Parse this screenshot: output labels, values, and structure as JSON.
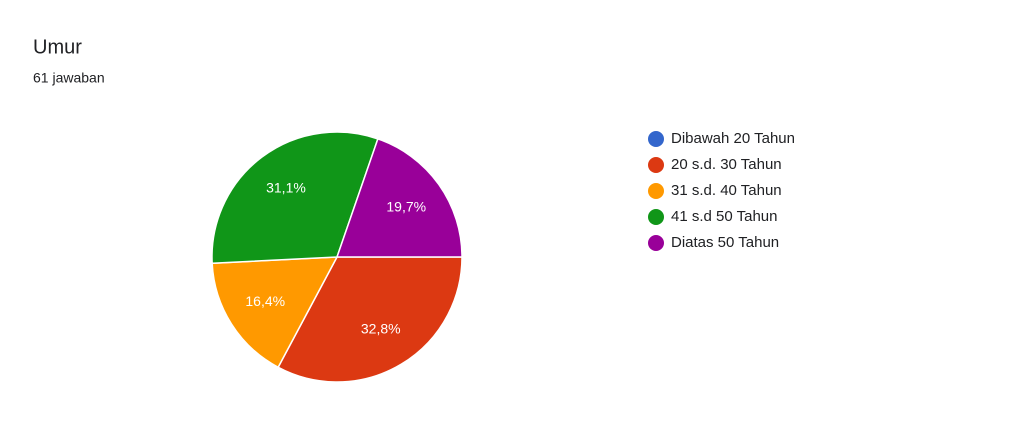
{
  "chart_data": {
    "type": "pie",
    "title": "Umur",
    "subtitle": "61 jawaban",
    "categories": [
      "Dibawah 20 Tahun",
      "20 s.d. 30 Tahun",
      "31 s.d. 40 Tahun",
      "41 s.d 50 Tahun",
      "Diatas 50 Tahun"
    ],
    "values": [
      0,
      32.8,
      16.4,
      31.1,
      19.7
    ],
    "value_labels": [
      null,
      "32,8%",
      "16,4%",
      "31,1%",
      "19,7%"
    ],
    "colors": [
      "#3366cc",
      "#dc3912",
      "#ff9900",
      "#109618",
      "#990099"
    ],
    "legend": "right"
  }
}
